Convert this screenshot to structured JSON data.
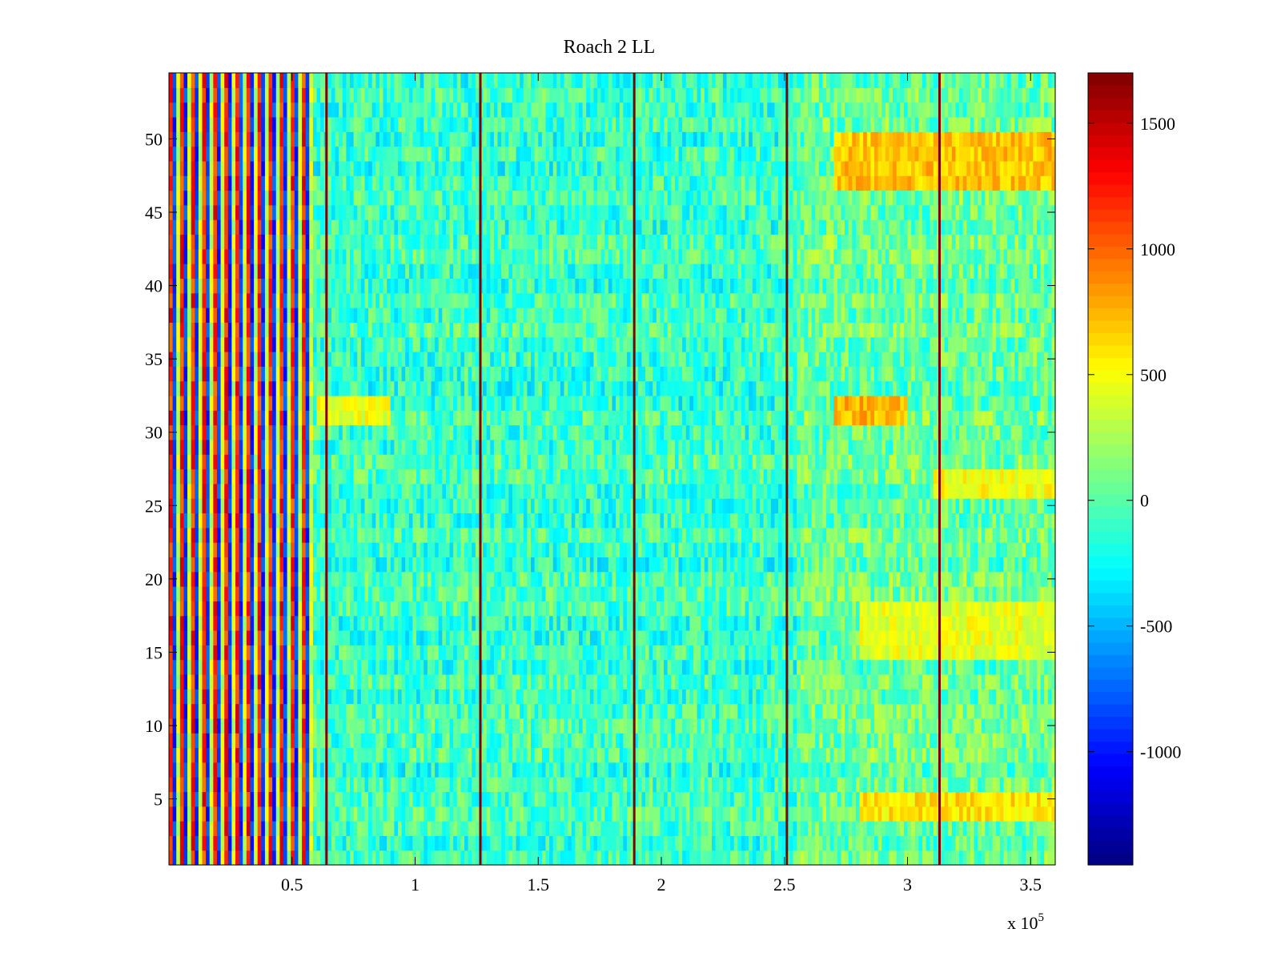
{
  "chart_data": {
    "type": "heatmap",
    "title": "Roach 2 LL",
    "xlabel": "",
    "ylabel": "",
    "x_exponent_label": "x 10",
    "x_exponent_power": "5",
    "xlim": [
      0,
      360000
    ],
    "ylim": [
      0.5,
      54.5
    ],
    "x_ticks": [
      {
        "value": 50000,
        "label": "0.5"
      },
      {
        "value": 100000,
        "label": "1"
      },
      {
        "value": 150000,
        "label": "1.5"
      },
      {
        "value": 200000,
        "label": "2"
      },
      {
        "value": 250000,
        "label": "2.5"
      },
      {
        "value": 300000,
        "label": "3"
      },
      {
        "value": 350000,
        "label": "3.5"
      }
    ],
    "y_ticks": [
      {
        "value": 5,
        "label": "5"
      },
      {
        "value": 10,
        "label": "10"
      },
      {
        "value": 15,
        "label": "15"
      },
      {
        "value": 20,
        "label": "20"
      },
      {
        "value": 25,
        "label": "25"
      },
      {
        "value": 30,
        "label": "30"
      },
      {
        "value": 35,
        "label": "35"
      },
      {
        "value": 40,
        "label": "40"
      },
      {
        "value": 45,
        "label": "45"
      },
      {
        "value": 50,
        "label": "50"
      }
    ],
    "rows": 54,
    "colorbar": {
      "colormap": "jet",
      "clim": [
        -1450,
        1700
      ],
      "ticks": [
        {
          "value": -1000,
          "label": "-1000"
        },
        {
          "value": -500,
          "label": "-500"
        },
        {
          "value": 0,
          "label": "0"
        },
        {
          "value": 500,
          "label": "500"
        },
        {
          "value": 1000,
          "label": "1000"
        },
        {
          "value": 1500,
          "label": "1500"
        }
      ]
    },
    "vertical_lines_x": [
      64000,
      126500,
      189000,
      251000,
      313000
    ],
    "striped_region_x": [
      0,
      59000
    ],
    "warm_regions": [
      {
        "rows": [
          47,
          50
        ],
        "x": [
          270000,
          360000
        ],
        "value": 700
      },
      {
        "rows": [
          31,
          32
        ],
        "x": [
          270000,
          300000
        ],
        "value": 750
      },
      {
        "rows": [
          31,
          32
        ],
        "x": [
          60000,
          90000
        ],
        "value": 450
      },
      {
        "rows": [
          4,
          5
        ],
        "x": [
          280000,
          360000
        ],
        "value": 600
      },
      {
        "rows": [
          15,
          18
        ],
        "x": [
          280000,
          360000
        ],
        "value": 450
      },
      {
        "rows": [
          26,
          27
        ],
        "x": [
          310000,
          360000
        ],
        "value": 500
      }
    ],
    "grid": false
  }
}
